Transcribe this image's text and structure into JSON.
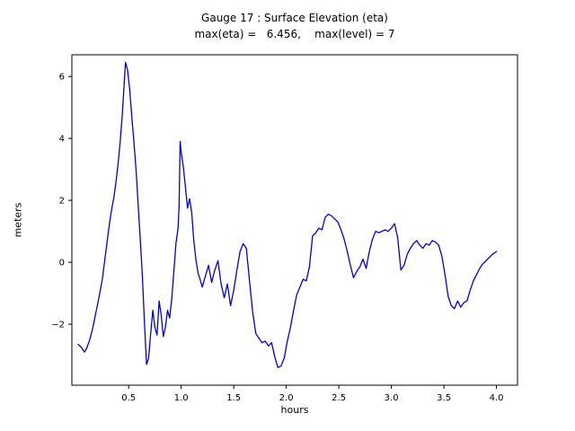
{
  "chart_data": {
    "type": "line",
    "title": "Gauge 17 : Surface Elevation (eta)",
    "subtitle": "max(eta) =   6.456,    max(level) = 7",
    "xlabel": "hours",
    "ylabel": "meters",
    "line_color": "#0000e0",
    "axis_color": "#000000",
    "background": "#ffffff",
    "grid": false,
    "legend": "none",
    "xlim": [
      -0.04,
      4.2
    ],
    "ylim": [
      -3.97,
      6.7
    ],
    "xtick_values": [
      0.5,
      1.0,
      1.5,
      2.0,
      2.5,
      3.0,
      3.5,
      4.0
    ],
    "xtick_labels": [
      "0.5",
      "1.0",
      "1.5",
      "2.0",
      "2.5",
      "3.0",
      "3.5",
      "4.0"
    ],
    "ytick_values": [
      -2,
      0,
      2,
      4,
      6
    ],
    "ytick_labels": [
      "−2",
      "0",
      "2",
      "4",
      "6"
    ],
    "max_eta": 6.456,
    "max_level": 7,
    "points": [
      [
        0.02,
        -2.65
      ],
      [
        0.05,
        -2.75
      ],
      [
        0.08,
        -2.9
      ],
      [
        0.1,
        -2.78
      ],
      [
        0.13,
        -2.5
      ],
      [
        0.16,
        -2.1
      ],
      [
        0.19,
        -1.6
      ],
      [
        0.22,
        -1.1
      ],
      [
        0.25,
        -0.55
      ],
      [
        0.27,
        0.0
      ],
      [
        0.3,
        0.8
      ],
      [
        0.32,
        1.3
      ],
      [
        0.34,
        1.75
      ],
      [
        0.36,
        2.1
      ],
      [
        0.38,
        2.6
      ],
      [
        0.4,
        3.2
      ],
      [
        0.42,
        3.9
      ],
      [
        0.44,
        4.8
      ],
      [
        0.46,
        5.9
      ],
      [
        0.47,
        6.456
      ],
      [
        0.49,
        6.2
      ],
      [
        0.51,
        5.6
      ],
      [
        0.53,
        4.7
      ],
      [
        0.55,
        3.9
      ],
      [
        0.57,
        3.0
      ],
      [
        0.59,
        1.9
      ],
      [
        0.61,
        0.8
      ],
      [
        0.63,
        -0.4
      ],
      [
        0.65,
        -1.9
      ],
      [
        0.67,
        -3.3
      ],
      [
        0.69,
        -3.1
      ],
      [
        0.71,
        -2.3
      ],
      [
        0.73,
        -1.55
      ],
      [
        0.75,
        -2.1
      ],
      [
        0.77,
        -2.35
      ],
      [
        0.79,
        -1.25
      ],
      [
        0.81,
        -1.7
      ],
      [
        0.83,
        -2.4
      ],
      [
        0.85,
        -2.1
      ],
      [
        0.87,
        -1.55
      ],
      [
        0.89,
        -1.8
      ],
      [
        0.91,
        -1.2
      ],
      [
        0.93,
        -0.3
      ],
      [
        0.95,
        0.6
      ],
      [
        0.97,
        1.1
      ],
      [
        0.98,
        1.8
      ],
      [
        0.99,
        3.9
      ],
      [
        1.0,
        3.55
      ],
      [
        1.02,
        3.1
      ],
      [
        1.04,
        2.45
      ],
      [
        1.06,
        1.75
      ],
      [
        1.08,
        2.05
      ],
      [
        1.1,
        1.6
      ],
      [
        1.12,
        0.7
      ],
      [
        1.14,
        0.1
      ],
      [
        1.16,
        -0.35
      ],
      [
        1.18,
        -0.55
      ],
      [
        1.2,
        -0.8
      ],
      [
        1.23,
        -0.45
      ],
      [
        1.26,
        -0.1
      ],
      [
        1.29,
        -0.65
      ],
      [
        1.32,
        -0.25
      ],
      [
        1.35,
        0.05
      ],
      [
        1.38,
        -0.7
      ],
      [
        1.41,
        -1.15
      ],
      [
        1.44,
        -0.7
      ],
      [
        1.47,
        -1.4
      ],
      [
        1.5,
        -0.9
      ],
      [
        1.53,
        -0.25
      ],
      [
        1.56,
        0.35
      ],
      [
        1.59,
        0.6
      ],
      [
        1.62,
        0.45
      ],
      [
        1.65,
        -0.6
      ],
      [
        1.68,
        -1.6
      ],
      [
        1.71,
        -2.3
      ],
      [
        1.74,
        -2.45
      ],
      [
        1.77,
        -2.6
      ],
      [
        1.8,
        -2.55
      ],
      [
        1.83,
        -2.7
      ],
      [
        1.86,
        -2.6
      ],
      [
        1.89,
        -3.05
      ],
      [
        1.92,
        -3.4
      ],
      [
        1.95,
        -3.35
      ],
      [
        1.98,
        -3.1
      ],
      [
        2.01,
        -2.55
      ],
      [
        2.04,
        -2.1
      ],
      [
        2.07,
        -1.55
      ],
      [
        2.1,
        -1.05
      ],
      [
        2.13,
        -0.8
      ],
      [
        2.16,
        -0.55
      ],
      [
        2.19,
        -0.6
      ],
      [
        2.22,
        -0.15
      ],
      [
        2.25,
        0.85
      ],
      [
        2.28,
        0.95
      ],
      [
        2.31,
        1.1
      ],
      [
        2.34,
        1.05
      ],
      [
        2.37,
        1.45
      ],
      [
        2.4,
        1.55
      ],
      [
        2.43,
        1.5
      ],
      [
        2.46,
        1.4
      ],
      [
        2.49,
        1.3
      ],
      [
        2.52,
        1.05
      ],
      [
        2.55,
        0.75
      ],
      [
        2.58,
        0.35
      ],
      [
        2.61,
        -0.1
      ],
      [
        2.64,
        -0.5
      ],
      [
        2.67,
        -0.3
      ],
      [
        2.7,
        -0.15
      ],
      [
        2.73,
        0.1
      ],
      [
        2.76,
        -0.2
      ],
      [
        2.79,
        0.35
      ],
      [
        2.82,
        0.75
      ],
      [
        2.85,
        1.0
      ],
      [
        2.88,
        0.95
      ],
      [
        2.91,
        1.0
      ],
      [
        2.94,
        1.05
      ],
      [
        2.97,
        1.0
      ],
      [
        3.0,
        1.1
      ],
      [
        3.03,
        1.25
      ],
      [
        3.06,
        0.8
      ],
      [
        3.09,
        -0.25
      ],
      [
        3.12,
        -0.1
      ],
      [
        3.15,
        0.25
      ],
      [
        3.18,
        0.45
      ],
      [
        3.21,
        0.6
      ],
      [
        3.24,
        0.7
      ],
      [
        3.27,
        0.55
      ],
      [
        3.3,
        0.45
      ],
      [
        3.33,
        0.6
      ],
      [
        3.36,
        0.55
      ],
      [
        3.39,
        0.7
      ],
      [
        3.42,
        0.65
      ],
      [
        3.45,
        0.55
      ],
      [
        3.48,
        0.2
      ],
      [
        3.51,
        -0.4
      ],
      [
        3.54,
        -1.1
      ],
      [
        3.57,
        -1.4
      ],
      [
        3.6,
        -1.5
      ],
      [
        3.63,
        -1.25
      ],
      [
        3.66,
        -1.45
      ],
      [
        3.69,
        -1.3
      ],
      [
        3.72,
        -1.25
      ],
      [
        3.75,
        -0.9
      ],
      [
        3.78,
        -0.6
      ],
      [
        3.81,
        -0.4
      ],
      [
        3.84,
        -0.2
      ],
      [
        3.87,
        -0.05
      ],
      [
        3.9,
        0.05
      ],
      [
        3.93,
        0.15
      ],
      [
        3.96,
        0.25
      ],
      [
        4.0,
        0.35
      ]
    ]
  }
}
